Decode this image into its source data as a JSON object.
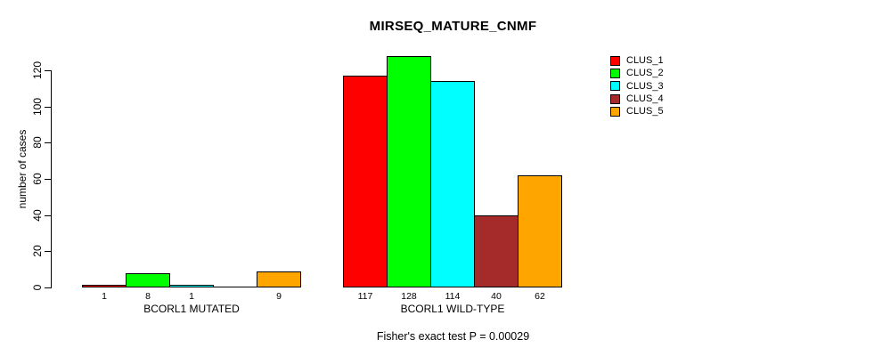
{
  "title": "MIRSEQ_MATURE_CNMF",
  "chart_data": {
    "type": "bar",
    "title": "MIRSEQ_MATURE_CNMF",
    "xlabel": "",
    "ylabel": "number of cases",
    "ylim": [
      0,
      120
    ],
    "yticks": [
      0,
      20,
      40,
      60,
      80,
      100,
      120
    ],
    "categories": [
      "BCORL1 MUTATED",
      "BCORL1 WILD-TYPE"
    ],
    "series": [
      {
        "name": "CLUS_1",
        "color": "#ff0000",
        "values": [
          1,
          117
        ]
      },
      {
        "name": "CLUS_2",
        "color": "#00ff00",
        "values": [
          8,
          128
        ]
      },
      {
        "name": "CLUS_3",
        "color": "#00ffff",
        "values": [
          1,
          114
        ]
      },
      {
        "name": "CLUS_4",
        "color": "#a52a2a",
        "values": [
          0,
          40
        ]
      },
      {
        "name": "CLUS_5",
        "color": "#ffa500",
        "values": [
          9,
          62
        ]
      }
    ],
    "bar_value_labels": {
      "shown": true,
      "hide_zero": true
    },
    "legend": {
      "position": "top-right",
      "entries": [
        "CLUS_1",
        "CLUS_2",
        "CLUS_3",
        "CLUS_4",
        "CLUS_5"
      ]
    },
    "footnote": "Fisher's exact test P = 0.00029",
    "grid": false,
    "background": "#ffffff",
    "axis_color": "#000000"
  }
}
